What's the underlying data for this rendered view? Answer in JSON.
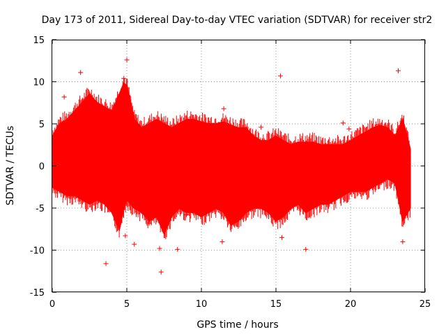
{
  "chart_data": {
    "type": "scatter",
    "title": "Day 173 of 2011, Sidereal Day-to-day VTEC variation (SDTVAR) for receiver str2",
    "xlabel": "GPS time / hours",
    "ylabel": "SDTVAR / TECUs",
    "xlim": [
      0,
      25
    ],
    "ylim": [
      -15,
      15
    ],
    "x_ticks": [
      0,
      5,
      10,
      15,
      20,
      25
    ],
    "x_tick_labels": [
      "0",
      "5",
      "10",
      "15",
      "20",
      "25"
    ],
    "y_ticks": [
      -15,
      -10,
      -5,
      0,
      5,
      10,
      15
    ],
    "y_tick_labels": [
      "-15",
      "-10",
      "-5",
      "0",
      "5",
      "10",
      "15"
    ],
    "grid": true,
    "marker": "+",
    "color": "#ff0000",
    "band_envelope": {
      "description": "dense cloud of points spanning from lower to upper envelope",
      "x": [
        0,
        0.5,
        1,
        1.5,
        2,
        2.5,
        3,
        3.5,
        4,
        4.5,
        4.8,
        5,
        5.5,
        6,
        6.5,
        7,
        7.5,
        8,
        8.5,
        9,
        9.5,
        10,
        10.5,
        11,
        11.5,
        12,
        12.5,
        13,
        13.5,
        14,
        14.5,
        15,
        15.5,
        16,
        16.5,
        17,
        17.5,
        18,
        18.5,
        19,
        19.5,
        20,
        20.5,
        21,
        21.5,
        22,
        22.5,
        23,
        23.5,
        24
      ],
      "upper": [
        3.5,
        5.0,
        5.5,
        6.5,
        7.5,
        8.5,
        7.5,
        7.0,
        6.5,
        8.5,
        9.8,
        9.5,
        5.5,
        4.5,
        5.0,
        5.5,
        5.0,
        4.5,
        5.0,
        5.5,
        5.5,
        5.2,
        5.0,
        5.0,
        5.2,
        4.8,
        4.5,
        4.5,
        3.5,
        3.0,
        3.0,
        3.5,
        3.0,
        2.5,
        2.8,
        2.8,
        2.8,
        2.5,
        2.5,
        2.5,
        2.5,
        3.0,
        3.5,
        4.0,
        4.5,
        4.8,
        4.5,
        3.5,
        5.5,
        2.0
      ],
      "lower": [
        -2.5,
        -3.0,
        -3.5,
        -3.5,
        -4.0,
        -4.5,
        -4.0,
        -4.5,
        -5.5,
        -7.5,
        -5.0,
        -4.0,
        -5.0,
        -5.5,
        -6.5,
        -6.0,
        -8.0,
        -6.0,
        -5.0,
        -5.5,
        -5.5,
        -6.0,
        -5.5,
        -5.0,
        -5.5,
        -7.0,
        -6.5,
        -5.5,
        -5.0,
        -5.0,
        -5.5,
        -6.5,
        -6.0,
        -5.0,
        -4.5,
        -5.5,
        -5.0,
        -4.5,
        -4.5,
        -4.0,
        -3.5,
        -3.0,
        -3.0,
        -3.0,
        -2.5,
        -2.0,
        -1.5,
        -2.0,
        -6.5,
        -5.0
      ]
    },
    "outliers": {
      "x": [
        0.8,
        1.9,
        3.6,
        4.8,
        5.0,
        5.5,
        7.2,
        7.3,
        8.4,
        11.4,
        11.5,
        14.0,
        15.3,
        15.4,
        17.0,
        19.5,
        19.9,
        23.2,
        23.5,
        4.9,
        6.5,
        9.0
      ],
      "y": [
        8.2,
        11.1,
        -11.6,
        10.4,
        12.6,
        -9.3,
        -9.8,
        -12.6,
        -9.9,
        -9.0,
        6.8,
        4.6,
        10.7,
        -8.5,
        -9.9,
        5.1,
        4.4,
        11.3,
        -9.0,
        -8.3,
        -6.8,
        -5.8
      ]
    }
  }
}
